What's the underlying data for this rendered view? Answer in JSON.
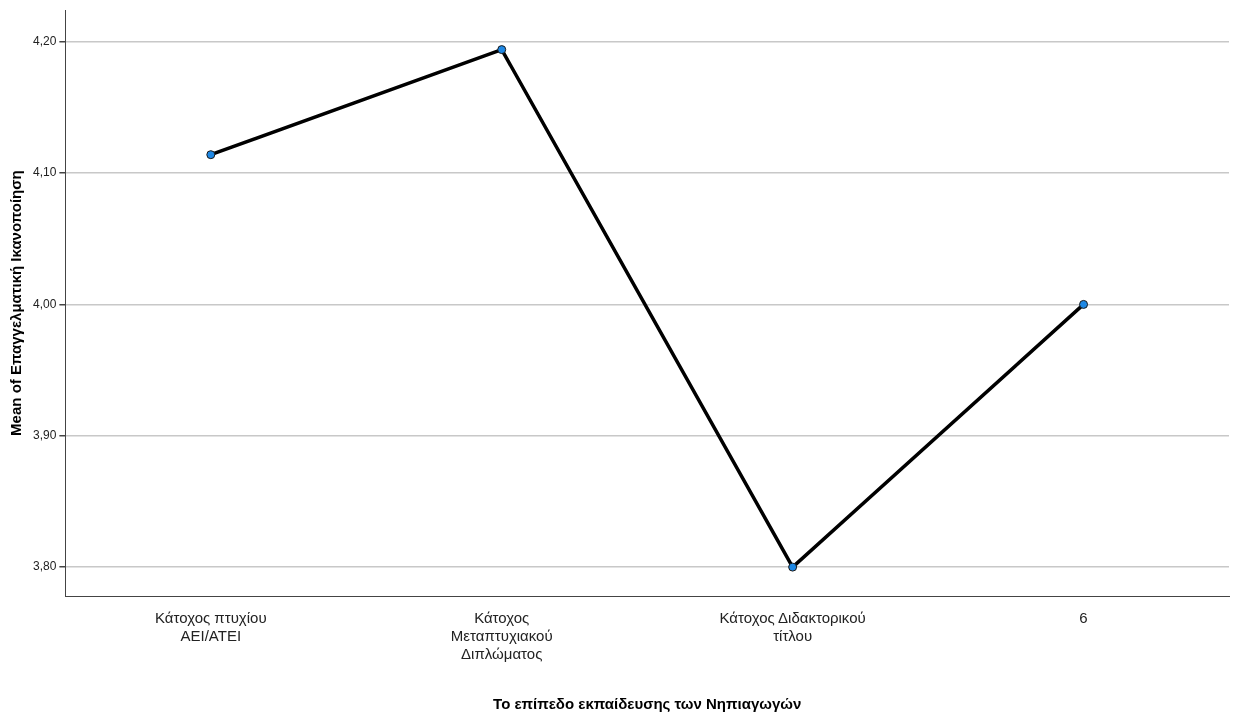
{
  "chart_data": {
    "type": "line",
    "xlabel": "Το επίπεδο εκπαίδευσης των Νηπιαγωγών",
    "ylabel": "Mean of Επαγγελματική Ικανοποίηση",
    "categories": [
      "Κάτοχος πτυχίου ΑΕΙ/ΑΤΕΙ",
      "Κάτοχος Μεταπτυχιακού Διπλώματος",
      "Κάτοχος Διδακτορικού τίτλου",
      "6"
    ],
    "series": [
      {
        "color": "#000000",
        "values": [
          4.114,
          4.194,
          3.8,
          4.0
        ]
      }
    ],
    "ylim": [
      3.778,
      4.224
    ],
    "yticks": [
      {
        "value": 3.8,
        "label": "3,80"
      },
      {
        "value": 3.9,
        "label": "3,90"
      },
      {
        "value": 4.0,
        "label": "4,00"
      },
      {
        "value": 4.1,
        "label": "4,10"
      },
      {
        "value": 4.2,
        "label": "4,20"
      }
    ],
    "grid": "y",
    "legend": false,
    "marker": "circle",
    "line_style": "solid"
  }
}
